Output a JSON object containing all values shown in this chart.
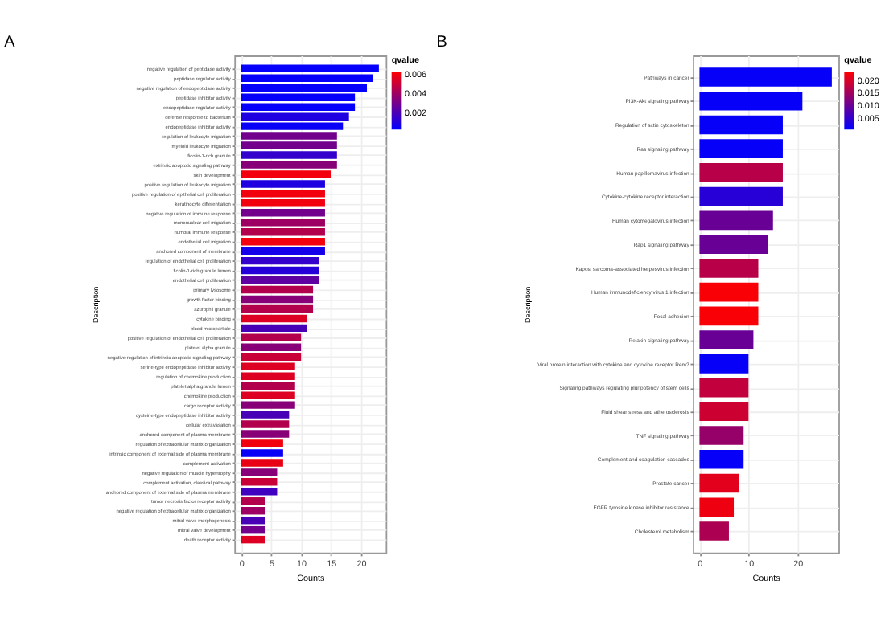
{
  "chart_data": [
    {
      "type": "bar",
      "orientation": "horizontal",
      "title": "A",
      "xlabel": "Counts",
      "ylabel": "Description",
      "clabel": "qvalue",
      "grid": true,
      "categories": [
        "negative regulation of peptidase activity",
        "peptidase regulator activity",
        "negative regulation of endopeptidase activity",
        "peptidase inhibitor activity",
        "endopeptidase regulator activity",
        "defense response to bacterium",
        "endopeptidase inhibitor activity",
        "regulation of leukocyte migration",
        "myeloid leukocyte migration",
        "ficolin-1-rich granule",
        "extrinsic apoptotic signaling pathway",
        "skin development",
        "positive regulation of leukocyte migration",
        "positive regulation of epithelial cell proliferation",
        "keratinocyte differentiation",
        "negative regulation of immune response",
        "mononuclear cell migration",
        "humoral immune response",
        "endothelial cell migration",
        "anchored component of membrane",
        "regulation of endothelial cell proliferation",
        "ficolin-1-rich granule lumen",
        "endothelial cell proliferation",
        "primary lysosome",
        "growth factor binding",
        "azurophil granule",
        "cytokine binding",
        "blood microparticle",
        "positive regulation of endothelial cell proliferation",
        "platelet alpha granule",
        "negative regulation of intrinsic apoptotic signaling pathway",
        "serine-type endopeptidase inhibitor activity",
        "regulation of chemokine production",
        "platelet alpha granule lumen",
        "chemokine production",
        "cargo receptor activity",
        "cysteine-type endopeptidase inhibitor activity",
        "cellular extravasation",
        "anchored component of plasma membrane",
        "regulation of extracellular matrix organization",
        "intrinsic component of external side of plasma membrane",
        "complement activation",
        "negative regulation of muscle hypertrophy",
        "complement activation, classical pathway",
        "anchored component of external side of plasma membrane",
        "tumor necrosis factor receptor activity",
        "negative regulation of extracellular matrix organization",
        "mitral valve morphogenesis",
        "mitral valve development",
        "death receptor activity"
      ],
      "values": [
        23,
        22,
        21,
        19,
        19,
        18,
        17,
        16,
        16,
        16,
        16,
        15,
        14,
        14,
        14,
        14,
        14,
        14,
        14,
        14,
        13,
        13,
        13,
        12,
        12,
        12,
        11,
        11,
        10,
        10,
        10,
        9,
        9,
        9,
        9,
        9,
        8,
        8,
        8,
        7,
        7,
        7,
        6,
        6,
        6,
        4,
        4,
        4,
        4,
        4
      ],
      "cvalues": [
        0.0004,
        0.0004,
        0.0004,
        0.0004,
        0.0004,
        0.001,
        0.0005,
        0.003,
        0.003,
        0.0015,
        0.0035,
        0.006,
        0.001,
        0.006,
        0.006,
        0.003,
        0.004,
        0.0045,
        0.006,
        0.0008,
        0.0015,
        0.0012,
        0.0025,
        0.0045,
        0.0035,
        0.0045,
        0.0055,
        0.002,
        0.0045,
        0.0035,
        0.005,
        0.0055,
        0.0055,
        0.0045,
        0.0055,
        0.0035,
        0.002,
        0.0045,
        0.0035,
        0.006,
        0.0005,
        0.0058,
        0.0035,
        0.005,
        0.0018,
        0.0045,
        0.004,
        0.002,
        0.003,
        0.0055
      ],
      "clim": [
        0.0003,
        0.0063
      ],
      "cticks": [
        {
          "value": 0.002,
          "label": "0.002"
        },
        {
          "value": 0.004,
          "label": "0.004"
        },
        {
          "value": 0.006,
          "label": "0.006"
        }
      ],
      "xlim": [
        -1.15,
        24.15
      ],
      "xticks": [
        0,
        5,
        10,
        15,
        20
      ]
    },
    {
      "type": "bar",
      "orientation": "horizontal",
      "title": "B",
      "xlabel": "Counts",
      "ylabel": "Description",
      "clabel": "qvalue",
      "grid": true,
      "categories": [
        "Pathways in cancer",
        "PI3K-Akt signaling pathway",
        "Regulation of actin cytoskeleton",
        "Ras signaling pathway",
        "Human papillomavirus infection",
        "Cytokine-cytokine receptor interaction",
        "Human cytomegalovirus infection",
        "Rap1 signaling pathway",
        "Kaposi sarcoma-associated herpesvirus infection",
        "Human immunodeficiency virus 1 infection",
        "Focal adhesion",
        "Relaxin signaling pathway",
        "Viral protein interaction with cytokine and cytokine receptor Rem?",
        "Signaling pathways regulating pluripotency of stem cells",
        "Fluid shear stress and atherosclerosis",
        "TNF signaling pathway",
        "Complement and coagulation cascades",
        "Prostate cancer",
        "EGFR tyrosine kinase inhibitor resistance",
        "Cholesterol metabolism"
      ],
      "values": [
        27,
        21,
        17,
        17,
        17,
        17,
        15,
        14,
        12,
        12,
        12,
        11,
        10,
        10,
        10,
        9,
        9,
        8,
        7,
        6
      ],
      "cvalues": [
        0.001,
        0.001,
        0.001,
        0.001,
        0.017,
        0.004,
        0.01,
        0.01,
        0.017,
        0.023,
        0.023,
        0.01,
        0.001,
        0.018,
        0.019,
        0.014,
        0.001,
        0.021,
        0.022,
        0.016
      ],
      "clim": [
        0.0005,
        0.0235
      ],
      "cticks": [
        {
          "value": 0.005,
          "label": "0.005"
        },
        {
          "value": 0.01,
          "label": "0.010"
        },
        {
          "value": 0.015,
          "label": "0.015"
        },
        {
          "value": 0.02,
          "label": "0.020"
        }
      ],
      "xlim": [
        -1.35,
        28.35
      ],
      "xticks": [
        0,
        10,
        20
      ]
    }
  ]
}
